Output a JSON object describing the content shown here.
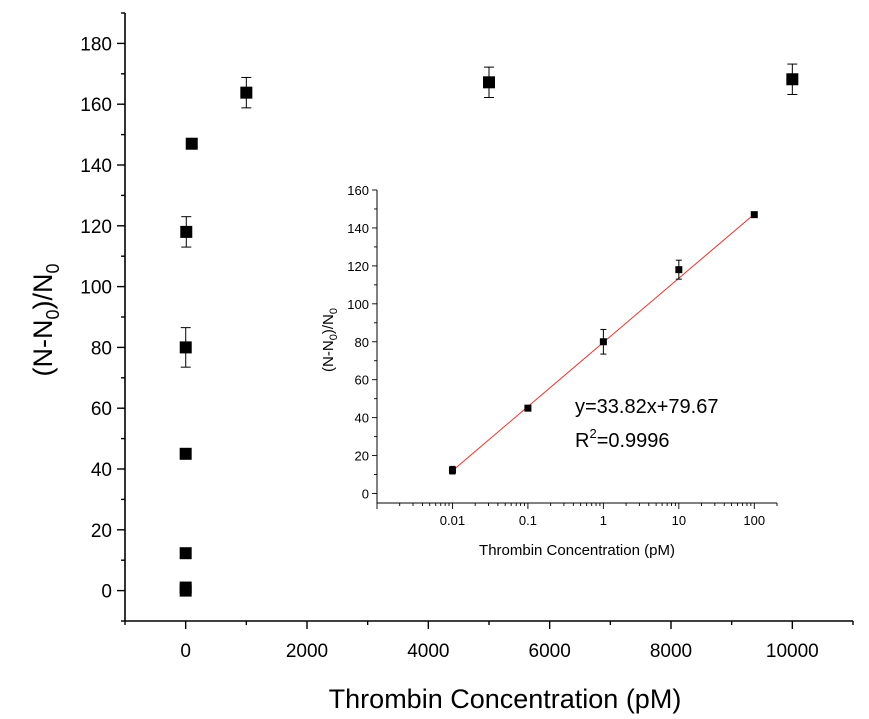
{
  "chart_data": [
    {
      "id": "main",
      "type": "scatter",
      "xlabel": "Thrombin  Concentration (pM)",
      "ylabel": "(N-N0)/N0",
      "ylabel_parts": {
        "base": "(N-N",
        "sub": "0",
        "mid": ")/N",
        "sub2": "0"
      },
      "xlim": [
        -1000,
        11000
      ],
      "ylim": [
        -10,
        190
      ],
      "xticks": [
        0,
        2000,
        4000,
        6000,
        8000,
        10000
      ],
      "yticks": [
        0,
        20,
        40,
        60,
        80,
        100,
        120,
        140,
        160,
        180
      ],
      "grid": false,
      "marker": "square",
      "points": [
        {
          "x": 0,
          "y": 0,
          "err": 0
        },
        {
          "x": 0,
          "y": 1,
          "err": 0
        },
        {
          "x": 0.01,
          "y": 12.3,
          "err": 0
        },
        {
          "x": 0.1,
          "y": 45,
          "err": 0
        },
        {
          "x": 1,
          "y": 80,
          "err": 6.5
        },
        {
          "x": 10,
          "y": 118,
          "err": 5
        },
        {
          "x": 100,
          "y": 147,
          "err": 0
        },
        {
          "x": 1000,
          "y": 163.8,
          "err": 5
        },
        {
          "x": 5000,
          "y": 167.2,
          "err": 5
        },
        {
          "x": 10000,
          "y": 168.2,
          "err": 5
        }
      ]
    },
    {
      "id": "inset",
      "type": "scatter",
      "xscale": "log",
      "xlabel": "Thrombin Concentration (pM)",
      "ylabel": "(N-N0)/N0",
      "ylabel_parts": {
        "base": "(N-N",
        "sub": "0",
        "mid": ")/N",
        "sub2": "0"
      },
      "xlim": [
        0.001,
        200
      ],
      "ylim": [
        -5,
        160
      ],
      "xticks": [
        0.01,
        0.1,
        1,
        10,
        100
      ],
      "xtick_labels": [
        "0.01",
        "0.1",
        "1",
        "10",
        "100"
      ],
      "yticks": [
        0,
        20,
        40,
        60,
        80,
        100,
        120,
        140,
        160
      ],
      "grid": false,
      "marker": "square",
      "points": [
        {
          "x": 0.01,
          "y": 12.3,
          "err": 2
        },
        {
          "x": 0.1,
          "y": 45,
          "err": 0
        },
        {
          "x": 1,
          "y": 80,
          "err": 6.5
        },
        {
          "x": 10,
          "y": 118,
          "err": 5
        },
        {
          "x": 100,
          "y": 147,
          "err": 0
        }
      ],
      "fit": {
        "slope": 33.82,
        "intercept": 79.67,
        "color": "#e8332a",
        "x_range": [
          0.01,
          100
        ]
      },
      "annotations": {
        "equation": "y=33.82x+79.67",
        "r2_base": "R",
        "r2_sup": "2",
        "r2_value": "=0.9996"
      }
    }
  ]
}
